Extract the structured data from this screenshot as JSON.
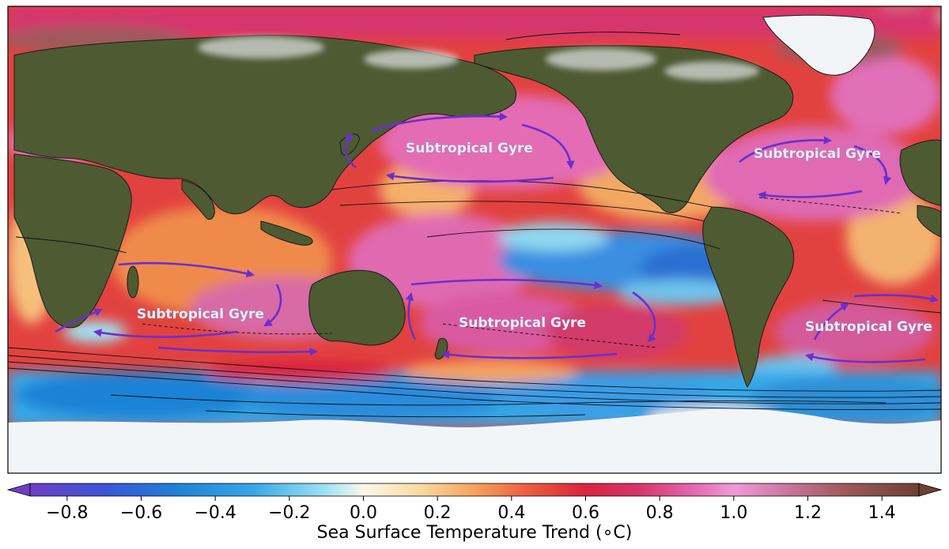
{
  "map": {
    "gyre_labels": [
      {
        "id": "north-pacific",
        "text": "Subtropical Gyre"
      },
      {
        "id": "north-atlantic",
        "text": "Subtropical Gyre"
      },
      {
        "id": "indian",
        "text": "Subtropical Gyre"
      },
      {
        "id": "south-pacific",
        "text": "Subtropical Gyre"
      },
      {
        "id": "south-atlantic",
        "text": "Subtropical Gyre"
      }
    ],
    "colors": {
      "arrow": "#6a2fd0",
      "land": "#4e5a32",
      "ice": "#f2f5f8",
      "ocean_warm": "#d8203a",
      "ocean_very_warm": "#e470c0",
      "ocean_cool": "#2e8fd8"
    }
  },
  "colorbar": {
    "title": "Sea Surface Temperature Trend ( ∘C)",
    "title_display": "Sea Surface Temperature Trend (∘C)",
    "ticks": [
      "−0.8",
      "−0.6",
      "−0.4",
      "−0.2",
      "0.0",
      "0.2",
      "0.4",
      "0.6",
      "0.8",
      "1.0",
      "1.2",
      "1.4"
    ],
    "tick_values": [
      -0.8,
      -0.6,
      -0.4,
      -0.2,
      0.0,
      0.2,
      0.4,
      0.6,
      0.8,
      1.0,
      1.2,
      1.4
    ],
    "range": [
      -0.9,
      1.5
    ],
    "extend": "both",
    "stops": [
      {
        "v": -0.9,
        "c": "#6e3fc4"
      },
      {
        "v": -0.7,
        "c": "#3b55d6"
      },
      {
        "v": -0.5,
        "c": "#1f82d6"
      },
      {
        "v": -0.3,
        "c": "#35a8e8"
      },
      {
        "v": -0.1,
        "c": "#9fe3f2"
      },
      {
        "v": 0.0,
        "c": "#fbf7ea"
      },
      {
        "v": 0.15,
        "c": "#fbdca0"
      },
      {
        "v": 0.3,
        "c": "#f6a35c"
      },
      {
        "v": 0.45,
        "c": "#ec5a3e"
      },
      {
        "v": 0.6,
        "c": "#d9243c"
      },
      {
        "v": 0.75,
        "c": "#d7366e"
      },
      {
        "v": 0.9,
        "c": "#e46cb4"
      },
      {
        "v": 1.0,
        "c": "#f09ad8"
      },
      {
        "v": 1.15,
        "c": "#c9749c"
      },
      {
        "v": 1.3,
        "c": "#9e5a5c"
      },
      {
        "v": 1.5,
        "c": "#6d4032"
      }
    ]
  }
}
